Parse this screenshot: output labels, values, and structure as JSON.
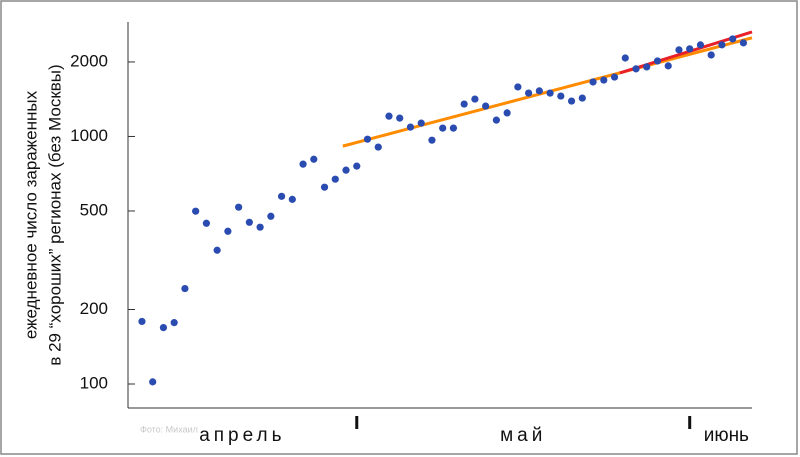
{
  "chart_data": {
    "type": "scatter",
    "y_label_lines": [
      "ежедневное число зараженных",
      "в 29 “хороших” регионах (без Москвы)"
    ],
    "watermark": "Фото: Михаил",
    "x": [
      11,
      12,
      13,
      14,
      15,
      16,
      17,
      18,
      19,
      20,
      21,
      22,
      23,
      24,
      25,
      26,
      27,
      28,
      29,
      30,
      31,
      32,
      33,
      34,
      35,
      36,
      37,
      38,
      39,
      40,
      41,
      42,
      43,
      44,
      45,
      46,
      47,
      48,
      49,
      50,
      51,
      52,
      53,
      54,
      55,
      56,
      57,
      58,
      59,
      60,
      61,
      62,
      63,
      64,
      65,
      66,
      67
    ],
    "values": [
      179,
      102,
      169,
      177,
      243,
      499,
      446,
      347,
      414,
      518,
      450,
      430,
      476,
      573,
      557,
      773,
      809,
      624,
      672,
      731,
      759,
      975,
      906,
      1208,
      1186,
      1091,
      1132,
      966,
      1081,
      1081,
      1352,
      1416,
      1327,
      1164,
      1245,
      1585,
      1497,
      1528,
      1497,
      1456,
      1390,
      1429,
      1660,
      1690,
      1738,
      2075,
      1875,
      1910,
      2018,
      1928,
      2238,
      2259,
      2344,
      2134,
      2344,
      2477,
      2388
    ],
    "color": "#2a4bb0",
    "lines": [
      {
        "color": "#ff8c00",
        "x": [
          29.7,
          67.8
        ],
        "values": [
          914,
          2503
        ]
      },
      {
        "color": "#e8202a",
        "x": [
          55.5,
          67.8
        ],
        "values": [
          1805,
          2645
        ]
      }
    ],
    "month_labels": [
      "апрель",
      "май",
      "июнь"
    ],
    "xlim": [
      9.7,
      67.8
    ],
    "xticks": [
      31,
      62
    ],
    "ylim": [
      80,
      2900
    ],
    "yticks": [
      100,
      200,
      500,
      1000,
      2000
    ],
    "log_y": true
  }
}
